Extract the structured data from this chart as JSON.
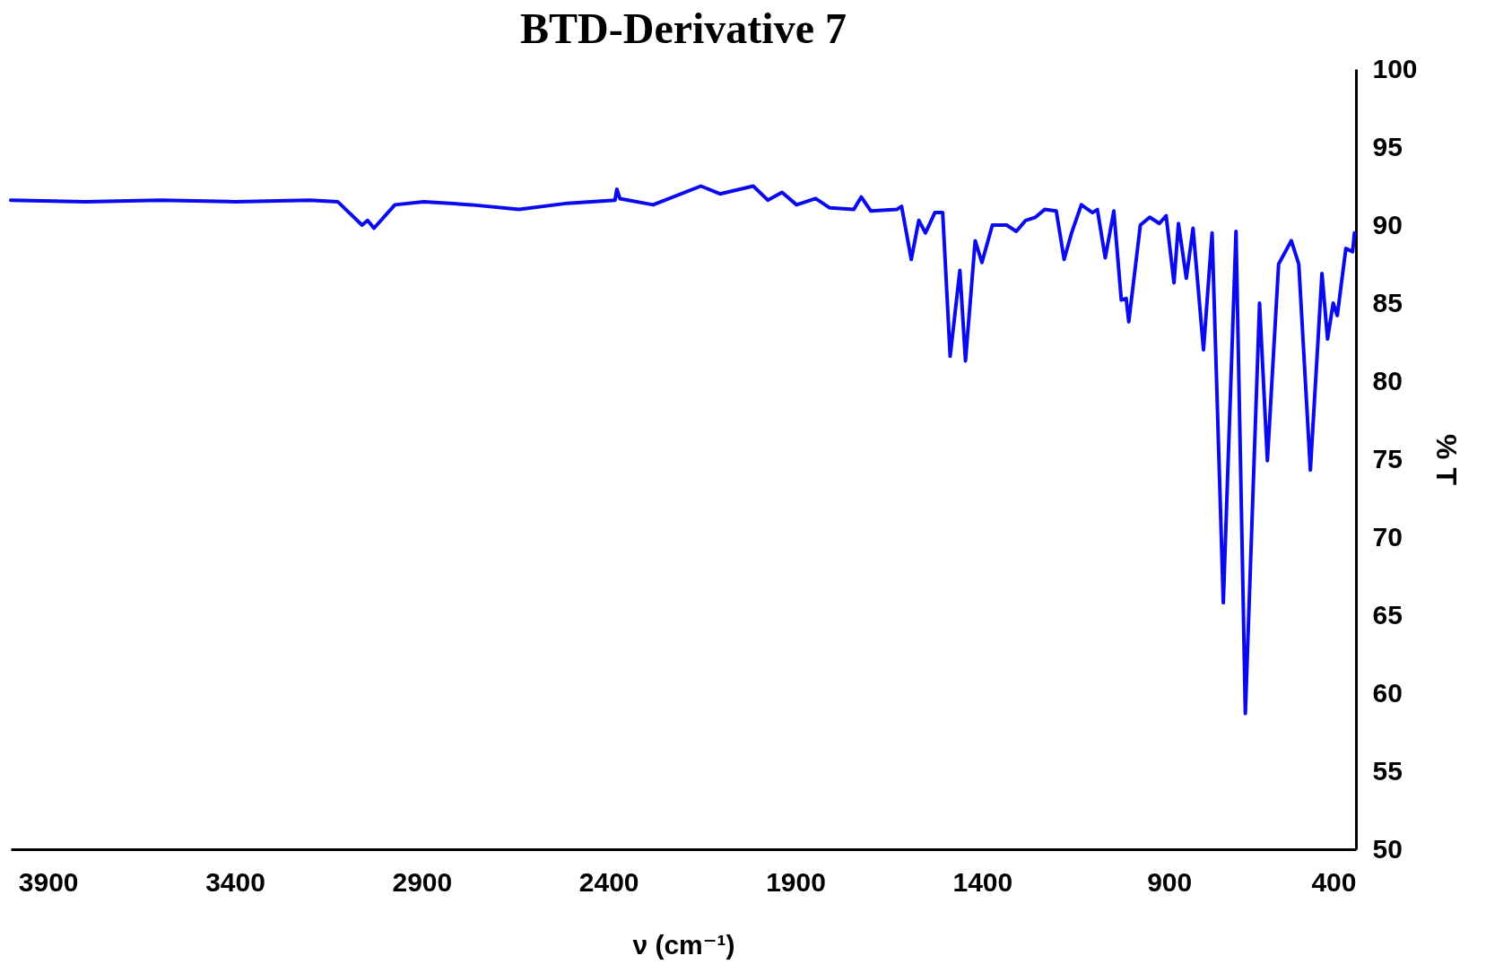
{
  "chart_data": {
    "type": "line",
    "title": "BTD-Derivative 7",
    "xlabel": "ν (cm⁻¹)",
    "ylabel": "% T",
    "xlim": [
      4000,
      400
    ],
    "xticks": [
      3900,
      3400,
      2900,
      2400,
      1900,
      1400,
      900,
      400
    ],
    "ylim": [
      50,
      100
    ],
    "yticks": [
      50,
      55,
      60,
      65,
      70,
      75,
      80,
      85,
      90,
      95,
      100
    ],
    "grid": false,
    "marker": "none",
    "line_style": "solid",
    "series": [
      {
        "color": "#0a0af0",
        "x": [
          4000,
          3800,
          3600,
          3400,
          3200,
          3125,
          3060,
          3045,
          3028,
          2972,
          2895,
          2767,
          2640,
          2510,
          2383,
          2378,
          2370,
          2281,
          2153,
          2102,
          2013,
          1974,
          1936,
          1897,
          1846,
          1808,
          1744,
          1724,
          1698,
          1629,
          1616,
          1590,
          1570,
          1552,
          1527,
          1506,
          1486,
          1460,
          1445,
          1419,
          1401,
          1373,
          1335,
          1309,
          1284,
          1258,
          1233,
          1202,
          1181,
          1161,
          1135,
          1105,
          1092,
          1071,
          1048,
          1028,
          1015,
          1008,
          977,
          952,
          926,
          908,
          887,
          875,
          854,
          836,
          808,
          785,
          755,
          721,
          696,
          658,
          637,
          607,
          573,
          553,
          522,
          491,
          476,
          461,
          450,
          427,
          409,
          404
        ],
        "values": [
          91.6,
          91.5,
          91.6,
          91.5,
          91.6,
          91.5,
          90.0,
          90.3,
          89.8,
          91.3,
          91.5,
          91.3,
          91.0,
          91.4,
          91.6,
          92.3,
          91.7,
          91.3,
          92.5,
          92.0,
          92.5,
          91.6,
          92.1,
          91.3,
          91.7,
          91.1,
          91.0,
          91.8,
          90.9,
          91.0,
          91.2,
          87.8,
          90.3,
          89.5,
          90.8,
          90.8,
          81.6,
          87.1,
          81.3,
          89.0,
          87.6,
          90.0,
          90.0,
          89.6,
          90.3,
          90.5,
          91.0,
          90.9,
          87.8,
          89.5,
          91.3,
          90.8,
          91.0,
          87.9,
          90.9,
          85.2,
          85.3,
          83.8,
          90.0,
          90.5,
          90.1,
          90.6,
          86.3,
          90.1,
          86.6,
          89.8,
          82.0,
          89.5,
          65.8,
          89.6,
          58.7,
          85.0,
          74.9,
          87.5,
          89.0,
          87.5,
          74.3,
          86.9,
          82.7,
          85.0,
          84.2,
          88.5,
          88.3,
          89.5
        ]
      }
    ]
  }
}
